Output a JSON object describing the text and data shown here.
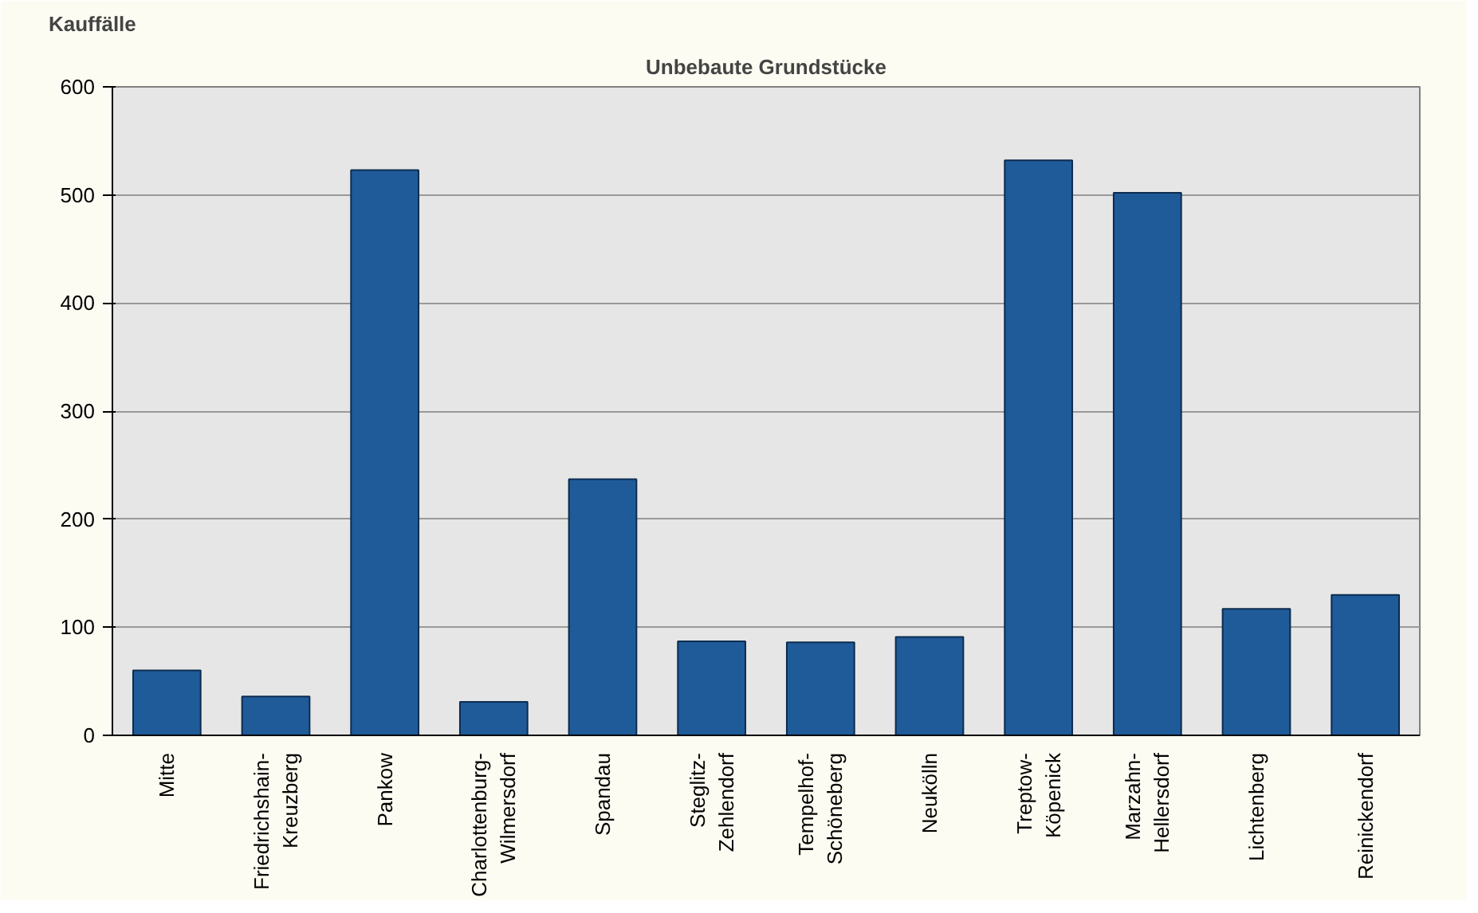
{
  "chart_data": {
    "type": "bar",
    "title": "Unbebaute Grundstücke",
    "ylabel": "Kauffälle",
    "categories": [
      "Mitte",
      "Friedrichshain-Kreuzberg",
      "Pankow",
      "Charlottenburg-Wilmersdorf",
      "Spandau",
      "Steglitz-Zehlendorf",
      "Tempelhof-Schöneberg",
      "Neukölln",
      "Treptow-Köpenick",
      "Marzahn-Hellersdorf",
      "Lichtenberg",
      "Reinickendorf"
    ],
    "values": [
      60,
      36,
      523,
      31,
      237,
      87,
      86,
      91,
      532,
      502,
      117,
      130
    ],
    "color": "#1f5b98",
    "ylim": [
      0,
      600
    ],
    "yticks": [
      0,
      100,
      200,
      300,
      400,
      500,
      600
    ],
    "grid": "y"
  }
}
